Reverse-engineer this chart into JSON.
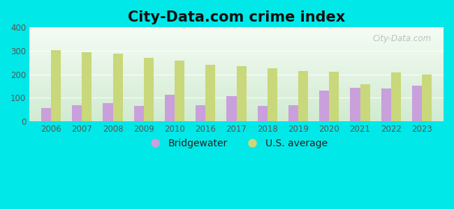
{
  "title": "City-Data.com crime index",
  "years": [
    2006,
    2007,
    2008,
    2009,
    2010,
    2016,
    2017,
    2018,
    2019,
    2020,
    2021,
    2022,
    2023
  ],
  "bridgewater": [
    57,
    68,
    78,
    65,
    113,
    68,
    108,
    65,
    68,
    132,
    143,
    140,
    153
  ],
  "us_average": [
    302,
    295,
    287,
    270,
    258,
    240,
    235,
    225,
    215,
    210,
    157,
    208,
    198
  ],
  "bridgewater_color": "#c9a0dc",
  "us_average_color": "#c8d87a",
  "background_color": "#00e8e8",
  "plot_bg_top": "#f5faf5",
  "plot_bg_bottom": "#d8efd8",
  "ylim": [
    0,
    400
  ],
  "yticks": [
    0,
    100,
    200,
    300,
    400
  ],
  "bar_width": 0.32,
  "legend_bridgewater": "Bridgewater",
  "legend_us": "U.S. average",
  "watermark": "City-Data.com",
  "title_fontsize": 15,
  "tick_fontsize": 8.5,
  "legend_fontsize": 10,
  "tick_color": "#555555",
  "title_color": "#111111"
}
